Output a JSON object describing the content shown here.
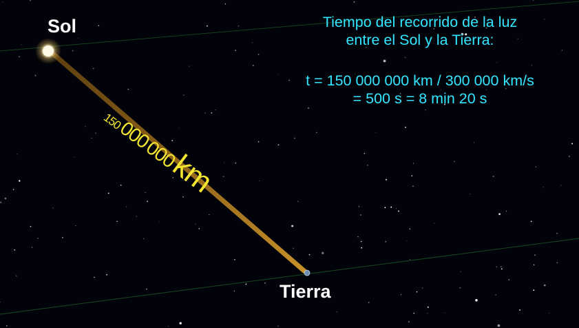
{
  "scene": {
    "sun_label": "Sol",
    "earth_label": "Tierra",
    "distance_label": {
      "part1": "150",
      "part2": "000",
      "part3": "000",
      "unit": "km"
    },
    "info": {
      "title_line1": "Tiempo del recorrido de la luz",
      "title_line2": "entre el Sol y la Tierra:",
      "formula_line1": "t = 150 000 000 km / 300 000 km/s",
      "formula_line2": "= 500 s = 8 min 20 s"
    }
  },
  "colors": {
    "background": "#02030a",
    "info_text": "#33e6ff",
    "distance_text": "#f4e531",
    "light_beam": "#b8801a",
    "label_text": "#ffffff",
    "grid_line": "#1d5a2a"
  }
}
